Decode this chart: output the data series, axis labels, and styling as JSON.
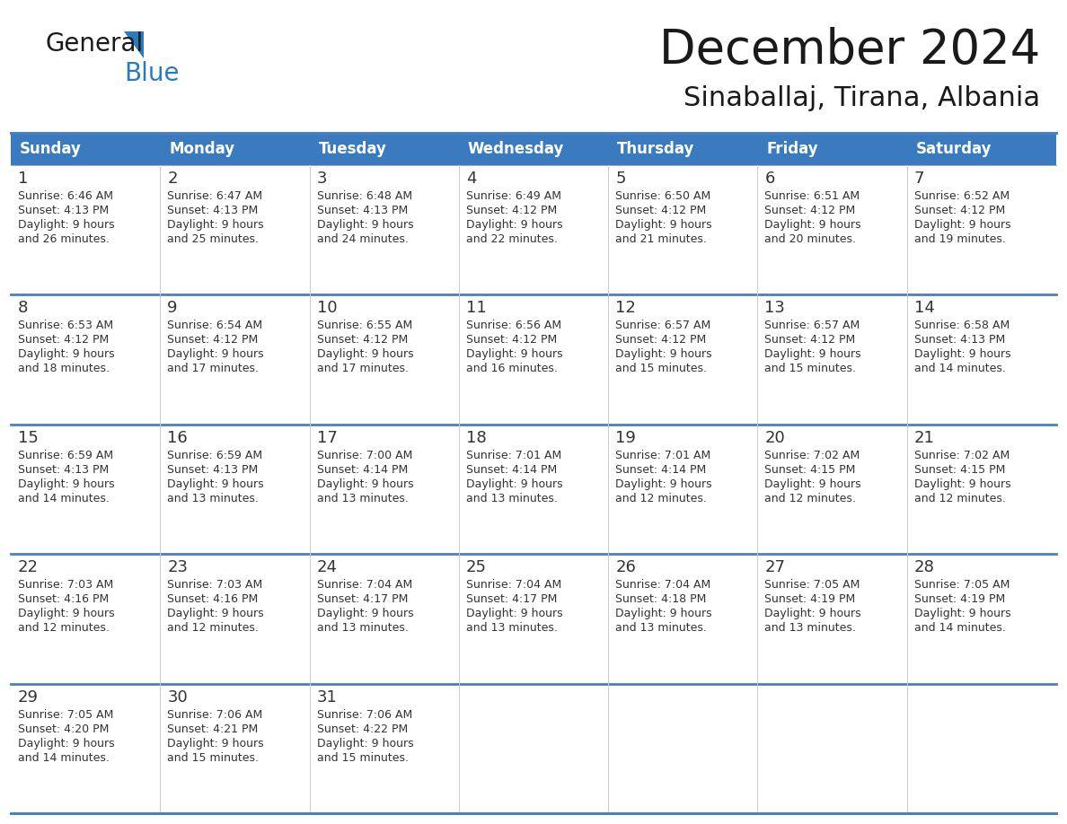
{
  "title": "December 2024",
  "subtitle": "Sinaballaj, Tirana, Albania",
  "header_color": "#3a7abf",
  "header_text_color": "#ffffff",
  "background_color": "#ffffff",
  "row_separator_color": "#4a7fc0",
  "cell_border_color": "#cccccc",
  "cell_bg_white": "#ffffff",
  "cell_bg_gray": "#f0f0f0",
  "day_names": [
    "Sunday",
    "Monday",
    "Tuesday",
    "Wednesday",
    "Thursday",
    "Friday",
    "Saturday"
  ],
  "text_color": "#333333",
  "day_num_size": 13,
  "day_text_size": 9,
  "header_font_size": 12,
  "title_font_size": 38,
  "subtitle_font_size": 22,
  "days": [
    {
      "day": 1,
      "col": 0,
      "row": 0,
      "sunrise": "6:46 AM",
      "sunset": "4:13 PM",
      "daylight": "9 hours and 26 minutes."
    },
    {
      "day": 2,
      "col": 1,
      "row": 0,
      "sunrise": "6:47 AM",
      "sunset": "4:13 PM",
      "daylight": "9 hours and 25 minutes."
    },
    {
      "day": 3,
      "col": 2,
      "row": 0,
      "sunrise": "6:48 AM",
      "sunset": "4:13 PM",
      "daylight": "9 hours and 24 minutes."
    },
    {
      "day": 4,
      "col": 3,
      "row": 0,
      "sunrise": "6:49 AM",
      "sunset": "4:12 PM",
      "daylight": "9 hours and 22 minutes."
    },
    {
      "day": 5,
      "col": 4,
      "row": 0,
      "sunrise": "6:50 AM",
      "sunset": "4:12 PM",
      "daylight": "9 hours and 21 minutes."
    },
    {
      "day": 6,
      "col": 5,
      "row": 0,
      "sunrise": "6:51 AM",
      "sunset": "4:12 PM",
      "daylight": "9 hours and 20 minutes."
    },
    {
      "day": 7,
      "col": 6,
      "row": 0,
      "sunrise": "6:52 AM",
      "sunset": "4:12 PM",
      "daylight": "9 hours and 19 minutes."
    },
    {
      "day": 8,
      "col": 0,
      "row": 1,
      "sunrise": "6:53 AM",
      "sunset": "4:12 PM",
      "daylight": "9 hours and 18 minutes."
    },
    {
      "day": 9,
      "col": 1,
      "row": 1,
      "sunrise": "6:54 AM",
      "sunset": "4:12 PM",
      "daylight": "9 hours and 17 minutes."
    },
    {
      "day": 10,
      "col": 2,
      "row": 1,
      "sunrise": "6:55 AM",
      "sunset": "4:12 PM",
      "daylight": "9 hours and 17 minutes."
    },
    {
      "day": 11,
      "col": 3,
      "row": 1,
      "sunrise": "6:56 AM",
      "sunset": "4:12 PM",
      "daylight": "9 hours and 16 minutes."
    },
    {
      "day": 12,
      "col": 4,
      "row": 1,
      "sunrise": "6:57 AM",
      "sunset": "4:12 PM",
      "daylight": "9 hours and 15 minutes."
    },
    {
      "day": 13,
      "col": 5,
      "row": 1,
      "sunrise": "6:57 AM",
      "sunset": "4:12 PM",
      "daylight": "9 hours and 15 minutes."
    },
    {
      "day": 14,
      "col": 6,
      "row": 1,
      "sunrise": "6:58 AM",
      "sunset": "4:13 PM",
      "daylight": "9 hours and 14 minutes."
    },
    {
      "day": 15,
      "col": 0,
      "row": 2,
      "sunrise": "6:59 AM",
      "sunset": "4:13 PM",
      "daylight": "9 hours and 14 minutes."
    },
    {
      "day": 16,
      "col": 1,
      "row": 2,
      "sunrise": "6:59 AM",
      "sunset": "4:13 PM",
      "daylight": "9 hours and 13 minutes."
    },
    {
      "day": 17,
      "col": 2,
      "row": 2,
      "sunrise": "7:00 AM",
      "sunset": "4:14 PM",
      "daylight": "9 hours and 13 minutes."
    },
    {
      "day": 18,
      "col": 3,
      "row": 2,
      "sunrise": "7:01 AM",
      "sunset": "4:14 PM",
      "daylight": "9 hours and 13 minutes."
    },
    {
      "day": 19,
      "col": 4,
      "row": 2,
      "sunrise": "7:01 AM",
      "sunset": "4:14 PM",
      "daylight": "9 hours and 12 minutes."
    },
    {
      "day": 20,
      "col": 5,
      "row": 2,
      "sunrise": "7:02 AM",
      "sunset": "4:15 PM",
      "daylight": "9 hours and 12 minutes."
    },
    {
      "day": 21,
      "col": 6,
      "row": 2,
      "sunrise": "7:02 AM",
      "sunset": "4:15 PM",
      "daylight": "9 hours and 12 minutes."
    },
    {
      "day": 22,
      "col": 0,
      "row": 3,
      "sunrise": "7:03 AM",
      "sunset": "4:16 PM",
      "daylight": "9 hours and 12 minutes."
    },
    {
      "day": 23,
      "col": 1,
      "row": 3,
      "sunrise": "7:03 AM",
      "sunset": "4:16 PM",
      "daylight": "9 hours and 12 minutes."
    },
    {
      "day": 24,
      "col": 2,
      "row": 3,
      "sunrise": "7:04 AM",
      "sunset": "4:17 PM",
      "daylight": "9 hours and 13 minutes."
    },
    {
      "day": 25,
      "col": 3,
      "row": 3,
      "sunrise": "7:04 AM",
      "sunset": "4:17 PM",
      "daylight": "9 hours and 13 minutes."
    },
    {
      "day": 26,
      "col": 4,
      "row": 3,
      "sunrise": "7:04 AM",
      "sunset": "4:18 PM",
      "daylight": "9 hours and 13 minutes."
    },
    {
      "day": 27,
      "col": 5,
      "row": 3,
      "sunrise": "7:05 AM",
      "sunset": "4:19 PM",
      "daylight": "9 hours and 13 minutes."
    },
    {
      "day": 28,
      "col": 6,
      "row": 3,
      "sunrise": "7:05 AM",
      "sunset": "4:19 PM",
      "daylight": "9 hours and 14 minutes."
    },
    {
      "day": 29,
      "col": 0,
      "row": 4,
      "sunrise": "7:05 AM",
      "sunset": "4:20 PM",
      "daylight": "9 hours and 14 minutes."
    },
    {
      "day": 30,
      "col": 1,
      "row": 4,
      "sunrise": "7:06 AM",
      "sunset": "4:21 PM",
      "daylight": "9 hours and 15 minutes."
    },
    {
      "day": 31,
      "col": 2,
      "row": 4,
      "sunrise": "7:06 AM",
      "sunset": "4:22 PM",
      "daylight": "9 hours and 15 minutes."
    }
  ]
}
